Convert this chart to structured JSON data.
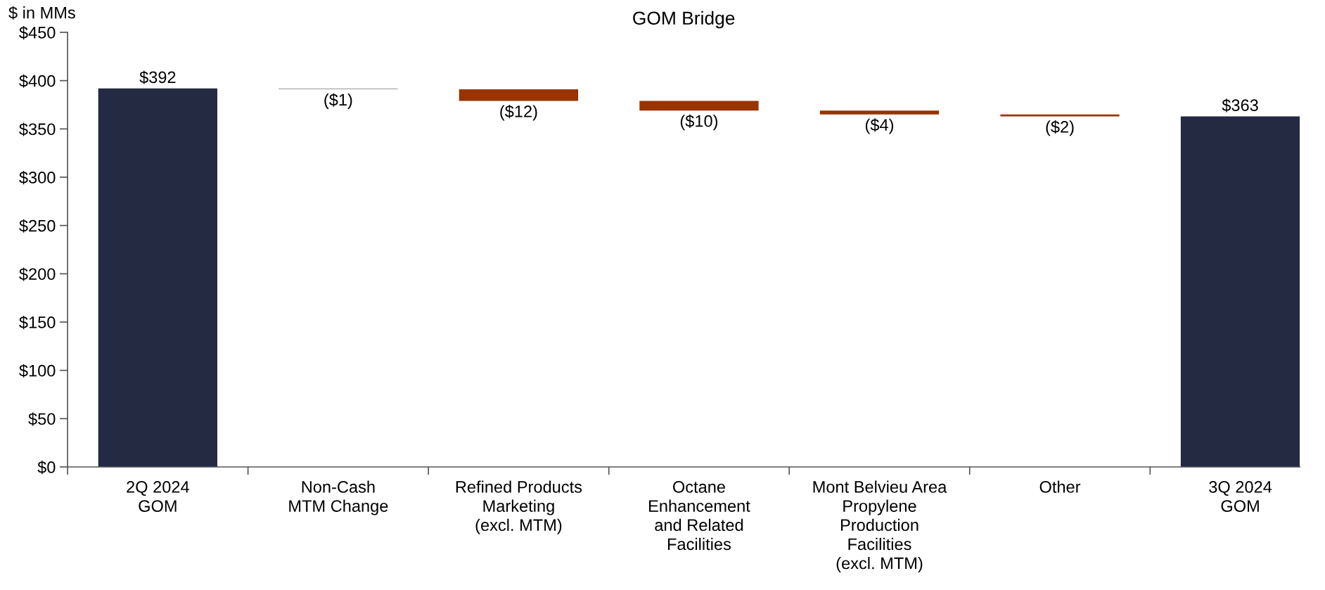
{
  "chart_data": {
    "type": "bar",
    "title": "GOM Bridge",
    "ylabel": "$ in MMs",
    "categories": [
      "2Q 2024\nGOM",
      "Non-Cash\nMTM Change",
      "Refined Products\nMarketing\n(excl. MTM)",
      "Octane\nEnhancement\nand Related\nFacilities",
      "Mont Belvieu Area\nPropylene\nProduction\nFacilities\n(excl. MTM)",
      "Other",
      "3Q 2024\nGOM"
    ],
    "values": [
      392,
      -1,
      -12,
      -10,
      -4,
      -2,
      363
    ],
    "base": [
      0,
      392,
      391,
      379,
      369,
      365,
      0
    ],
    "colors": [
      "#232a42",
      "#a6a6a6",
      "#993300",
      "#993300",
      "#993300",
      "#993300",
      "#232a42"
    ],
    "value_labels": [
      "$392",
      "($1)",
      "($12)",
      "($10)",
      "($4)",
      "($2)",
      "$363"
    ],
    "ylim": [
      0,
      450
    ],
    "yticks": [
      {
        "value": 0,
        "label": "$0"
      },
      {
        "value": 50,
        "label": "$50"
      },
      {
        "value": 100,
        "label": "$100"
      },
      {
        "value": 150,
        "label": "$150"
      },
      {
        "value": 200,
        "label": "$200"
      },
      {
        "value": 250,
        "label": "$250"
      },
      {
        "value": 300,
        "label": "$300"
      },
      {
        "value": 350,
        "label": "$350"
      },
      {
        "value": 400,
        "label": "$400"
      },
      {
        "value": 450,
        "label": "$450"
      }
    ]
  }
}
